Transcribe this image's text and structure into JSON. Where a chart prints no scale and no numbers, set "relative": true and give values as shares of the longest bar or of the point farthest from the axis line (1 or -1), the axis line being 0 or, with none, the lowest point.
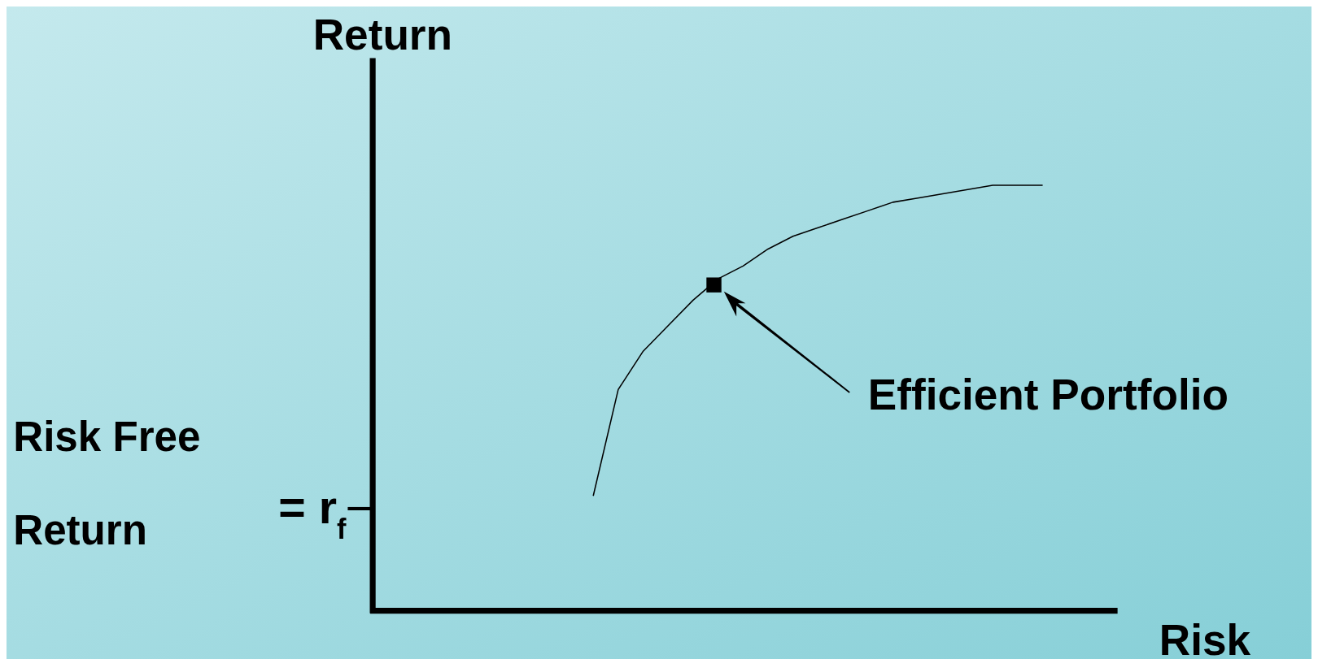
{
  "chart_data": {
    "type": "line",
    "relative": true,
    "xlabel": "Risk",
    "ylabel": "Return",
    "categories": [
      null,
      null,
      null,
      null,
      null,
      null,
      null,
      null,
      null,
      null,
      null,
      null,
      null,
      null,
      null,
      null,
      null,
      null,
      null
    ],
    "series": [
      {
        "color": "#000000",
        "values": [
          0.27,
          0.52,
          0.61,
          0.67,
          0.73,
          0.78,
          0.81,
          0.85,
          0.88,
          0.9,
          0.92,
          0.94,
          0.96,
          0.97,
          0.98,
          0.99,
          1.0,
          1.0,
          1.0
        ]
      }
    ],
    "ref_lines": [
      {
        "axis": "y",
        "value": 0.24,
        "label": "= r$_{f}$",
        "color": "#000000"
      }
    ],
    "annotations": [
      "Efficient Portfolio",
      "Risk Free Return"
    ]
  }
}
